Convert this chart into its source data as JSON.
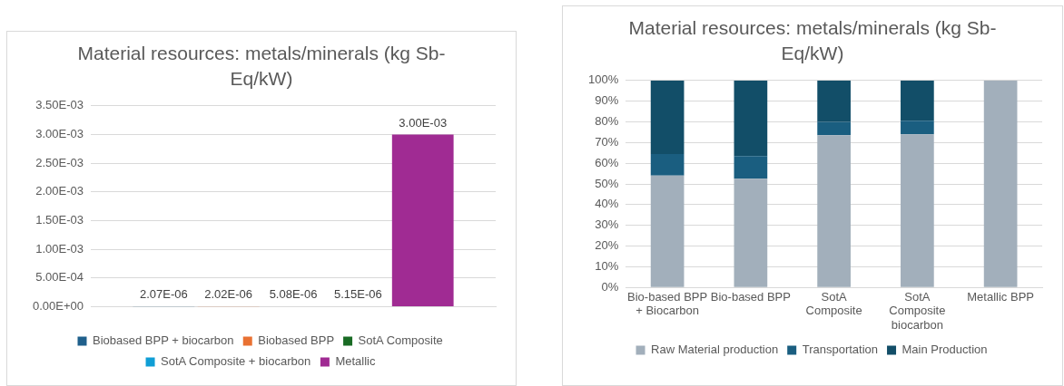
{
  "chart_data": [
    {
      "type": "bar",
      "title": "Material resources: metals/minerals (kg Sb-Eq/kW)",
      "categories": [
        null
      ],
      "series": [
        {
          "name": "Biobased BPP + biocarbon",
          "color": "#1f5f8b",
          "values": [
            2.07e-06
          ],
          "value_labels": [
            "2.07E-06"
          ]
        },
        {
          "name": "Biobased BPP",
          "color": "#e97132",
          "values": [
            2.02e-06
          ],
          "value_labels": [
            "2.02E-06"
          ]
        },
        {
          "name": "SotA Composite",
          "color": "#196b24",
          "values": [
            5.08e-06
          ],
          "value_labels": [
            "5.08E-06"
          ]
        },
        {
          "name": "SotA Composite + biocarbon",
          "color": "#0f9ed5",
          "values": [
            5.15e-06
          ],
          "value_labels": [
            "5.15E-06"
          ]
        },
        {
          "name": "Metallic",
          "color": "#a02b93",
          "values": [
            0.003
          ],
          "value_labels": [
            "3.00E-03"
          ]
        }
      ],
      "ylim": [
        0,
        0.0035
      ],
      "yticks": [
        {
          "value": 0,
          "label": "0.00E+00"
        },
        {
          "value": 0.0005,
          "label": "5.00E-04"
        },
        {
          "value": 0.001,
          "label": "1.00E-03"
        },
        {
          "value": 0.0015,
          "label": "1.50E-03"
        },
        {
          "value": 0.002,
          "label": "2.00E-03"
        },
        {
          "value": 0.0025,
          "label": "2.50E-03"
        },
        {
          "value": 0.003,
          "label": "3.00E-03"
        },
        {
          "value": 0.0035,
          "label": "3.50E-03"
        }
      ],
      "grid": "y",
      "legend": "bottom"
    },
    {
      "type": "bar",
      "title": "Material resources: metals/minerals (kg Sb-Eq/kW)",
      "stacked": true,
      "categories": [
        "Bio-based BPP + Biocarbon",
        "Bio-based BPP",
        "SotA Composite",
        "SotA Composite biocarbon",
        "Metallic BPP"
      ],
      "series": [
        {
          "name": "Raw Material production",
          "color": "#a2afbb",
          "values": [
            54,
            52.5,
            73.5,
            74,
            100
          ]
        },
        {
          "name": "Transportation",
          "color": "#1a5e80",
          "values": [
            10.5,
            11,
            6.5,
            6.5,
            0
          ]
        },
        {
          "name": "Main Production",
          "color": "#124e68",
          "values": [
            35.5,
            36.5,
            20,
            19.5,
            0
          ]
        }
      ],
      "ylim": [
        0,
        100
      ],
      "yticks": [
        {
          "value": 0,
          "label": "0%"
        },
        {
          "value": 10,
          "label": "10%"
        },
        {
          "value": 20,
          "label": "20%"
        },
        {
          "value": 30,
          "label": "30%"
        },
        {
          "value": 40,
          "label": "40%"
        },
        {
          "value": 50,
          "label": "50%"
        },
        {
          "value": 60,
          "label": "60%"
        },
        {
          "value": 70,
          "label": "70%"
        },
        {
          "value": 80,
          "label": "80%"
        },
        {
          "value": 90,
          "label": "90%"
        },
        {
          "value": 100,
          "label": "100%"
        }
      ],
      "grid": "y",
      "legend": "bottom"
    }
  ]
}
